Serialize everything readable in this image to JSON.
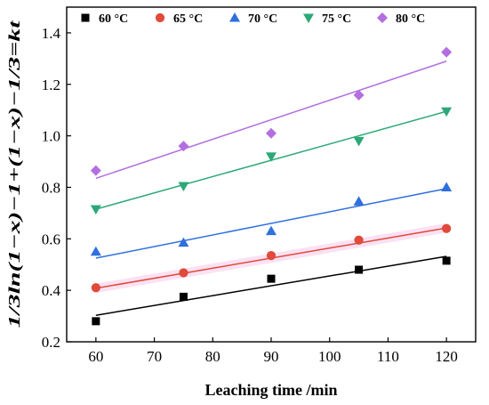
{
  "chart_data": {
    "type": "scatter",
    "xlabel": "Leaching time /min",
    "ylabel": "1/3ln(1−x)−1+(1−x)−1/3=kt",
    "xlim": [
      55,
      125
    ],
    "ylim": [
      0.2,
      1.5
    ],
    "xticks": [
      60,
      70,
      80,
      90,
      100,
      110,
      120
    ],
    "yticks": [
      0.2,
      0.4,
      0.6,
      0.8,
      1.0,
      1.2,
      1.4
    ],
    "ytick_labels": [
      "0.2",
      "0.4",
      "0.6",
      "0.8",
      "1.0",
      "1.2",
      "1.4"
    ],
    "x": [
      60,
      75,
      90,
      105,
      120
    ],
    "legend_position": "top",
    "grid": false,
    "series": [
      {
        "name": "60 °C",
        "marker": "square",
        "color": "#000000",
        "values": [
          0.28,
          0.375,
          0.445,
          0.48,
          0.515
        ],
        "fit": [
          0.303,
          0.532
        ]
      },
      {
        "name": "65 °C",
        "marker": "circle",
        "color": "#e04a3a",
        "values": [
          0.41,
          0.468,
          0.535,
          0.595,
          0.64
        ],
        "fit": [
          0.408,
          0.642
        ]
      },
      {
        "name": "70 °C",
        "marker": "triangle-up",
        "color": "#2f6fde",
        "values": [
          0.55,
          0.585,
          0.63,
          0.745,
          0.8
        ],
        "fit": [
          0.525,
          0.795
        ]
      },
      {
        "name": "75 °C",
        "marker": "triangle-down",
        "color": "#2ca878",
        "values": [
          0.715,
          0.805,
          0.92,
          0.98,
          1.095
        ],
        "fit": [
          0.715,
          1.095
        ]
      },
      {
        "name": "80 °C",
        "marker": "diamond",
        "color": "#b36fe0",
        "values": [
          0.865,
          0.96,
          1.01,
          1.158,
          1.325
        ],
        "fit": [
          0.835,
          1.29
        ]
      }
    ]
  }
}
